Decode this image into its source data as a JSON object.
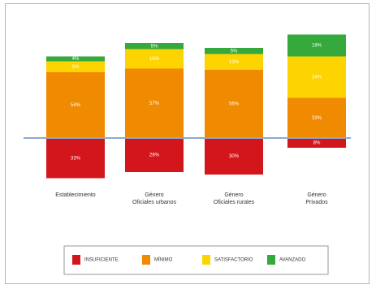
{
  "chart_data": {
    "type": "bar",
    "stacked": true,
    "diverging": true,
    "title": "",
    "xlabel": "",
    "ylabel": "",
    "categories": [
      [
        "Establecimiento"
      ],
      [
        "Género",
        "Oficiales urbanos"
      ],
      [
        "Género",
        "Oficiales rurales"
      ],
      [
        "Género",
        "Privados"
      ]
    ],
    "series": [
      {
        "name": "INSUFICIENTE",
        "color": "#d3161b",
        "values": [
          33,
          28,
          30,
          8
        ],
        "labels": [
          "33%",
          "28%",
          "30%",
          "8%"
        ]
      },
      {
        "name": "MÍNIMO",
        "color": "#f08a00",
        "values": [
          54,
          57,
          56,
          33
        ],
        "labels": [
          "54%",
          "57%",
          "56%",
          "33%"
        ]
      },
      {
        "name": "SATISFACTORIO",
        "color": "#fdd400",
        "values": [
          9,
          16,
          13,
          34
        ],
        "labels": [
          "9%",
          "16%",
          "13%",
          "34%"
        ]
      },
      {
        "name": "AVANZADO",
        "color": "#35a93c",
        "values": [
          4,
          5,
          5,
          18
        ],
        "labels": [
          "4%",
          "5%",
          "5%",
          "18%"
        ]
      }
    ],
    "baseline_series_below": 1,
    "legend_position": "bottom",
    "grid": false
  }
}
